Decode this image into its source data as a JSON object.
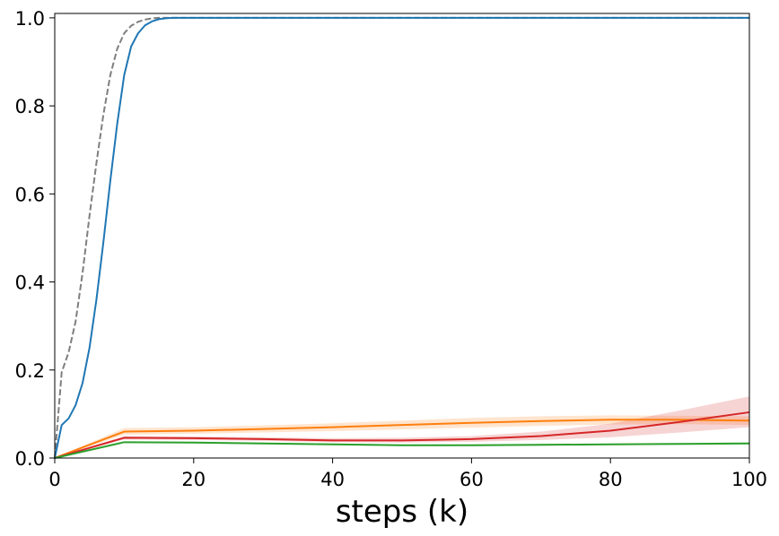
{
  "chart_data": {
    "type": "line",
    "title": "",
    "xlabel": "steps (k)",
    "ylabel": "",
    "xlim": [
      0,
      100
    ],
    "ylim": [
      0,
      1.01
    ],
    "xticks": [
      "0",
      "20",
      "40",
      "60",
      "80",
      "100"
    ],
    "yticks": [
      "0.0",
      "0.2",
      "0.4",
      "0.6",
      "0.8",
      "1.0"
    ],
    "grid": false,
    "series": [
      {
        "color": "#7f7f7f",
        "dash": true,
        "x": [
          0,
          1,
          2,
          3,
          4,
          5,
          6,
          7,
          8,
          9,
          10,
          11,
          12,
          13,
          14,
          15,
          16,
          18,
          20,
          100
        ],
        "y": [
          0,
          0.195,
          0.24,
          0.31,
          0.42,
          0.55,
          0.67,
          0.78,
          0.87,
          0.93,
          0.965,
          0.982,
          0.991,
          0.996,
          0.999,
          1.0,
          1.0,
          1.0,
          1.0,
          1.0
        ]
      },
      {
        "color": "#1f77b4",
        "x": [
          0,
          1,
          2,
          3,
          4,
          5,
          6,
          7,
          8,
          9,
          10,
          11,
          12,
          13,
          14,
          15,
          16,
          17,
          18,
          20,
          100
        ],
        "y": [
          0,
          0.075,
          0.09,
          0.12,
          0.17,
          0.25,
          0.36,
          0.49,
          0.63,
          0.76,
          0.87,
          0.935,
          0.965,
          0.983,
          0.992,
          0.997,
          0.999,
          1.0,
          1.0,
          1.0,
          1.0
        ]
      },
      {
        "color": "#ff7f0e",
        "x": [
          0,
          10,
          20,
          30,
          40,
          50,
          60,
          70,
          80,
          90,
          100
        ],
        "y": [
          0,
          0.06,
          0.062,
          0.066,
          0.07,
          0.075,
          0.08,
          0.084,
          0.087,
          0.087,
          0.085
        ],
        "lower": [
          0,
          0.053,
          0.055,
          0.058,
          0.061,
          0.065,
          0.069,
          0.073,
          0.076,
          0.077,
          0.075
        ],
        "upper": [
          0,
          0.068,
          0.07,
          0.074,
          0.079,
          0.085,
          0.091,
          0.095,
          0.097,
          0.096,
          0.095
        ]
      },
      {
        "color": "#d62728",
        "x": [
          0,
          10,
          20,
          30,
          40,
          50,
          60,
          70,
          80,
          90,
          100
        ],
        "y": [
          0,
          0.046,
          0.045,
          0.043,
          0.04,
          0.04,
          0.043,
          0.05,
          0.062,
          0.082,
          0.104
        ],
        "lower": [
          0,
          0.042,
          0.041,
          0.039,
          0.036,
          0.035,
          0.037,
          0.041,
          0.047,
          0.058,
          0.07
        ],
        "upper": [
          0,
          0.05,
          0.049,
          0.047,
          0.045,
          0.046,
          0.05,
          0.06,
          0.078,
          0.108,
          0.14
        ]
      },
      {
        "color": "#2ca02c",
        "x": [
          0,
          10,
          20,
          30,
          40,
          50,
          60,
          70,
          80,
          90,
          100
        ],
        "y": [
          0,
          0.036,
          0.035,
          0.033,
          0.031,
          0.029,
          0.029,
          0.03,
          0.031,
          0.032,
          0.033
        ],
        "lower": [
          0,
          0.034,
          0.033,
          0.031,
          0.029,
          0.027,
          0.027,
          0.028,
          0.029,
          0.03,
          0.031
        ],
        "upper": [
          0,
          0.038,
          0.037,
          0.035,
          0.033,
          0.031,
          0.031,
          0.032,
          0.033,
          0.034,
          0.036
        ]
      }
    ]
  }
}
